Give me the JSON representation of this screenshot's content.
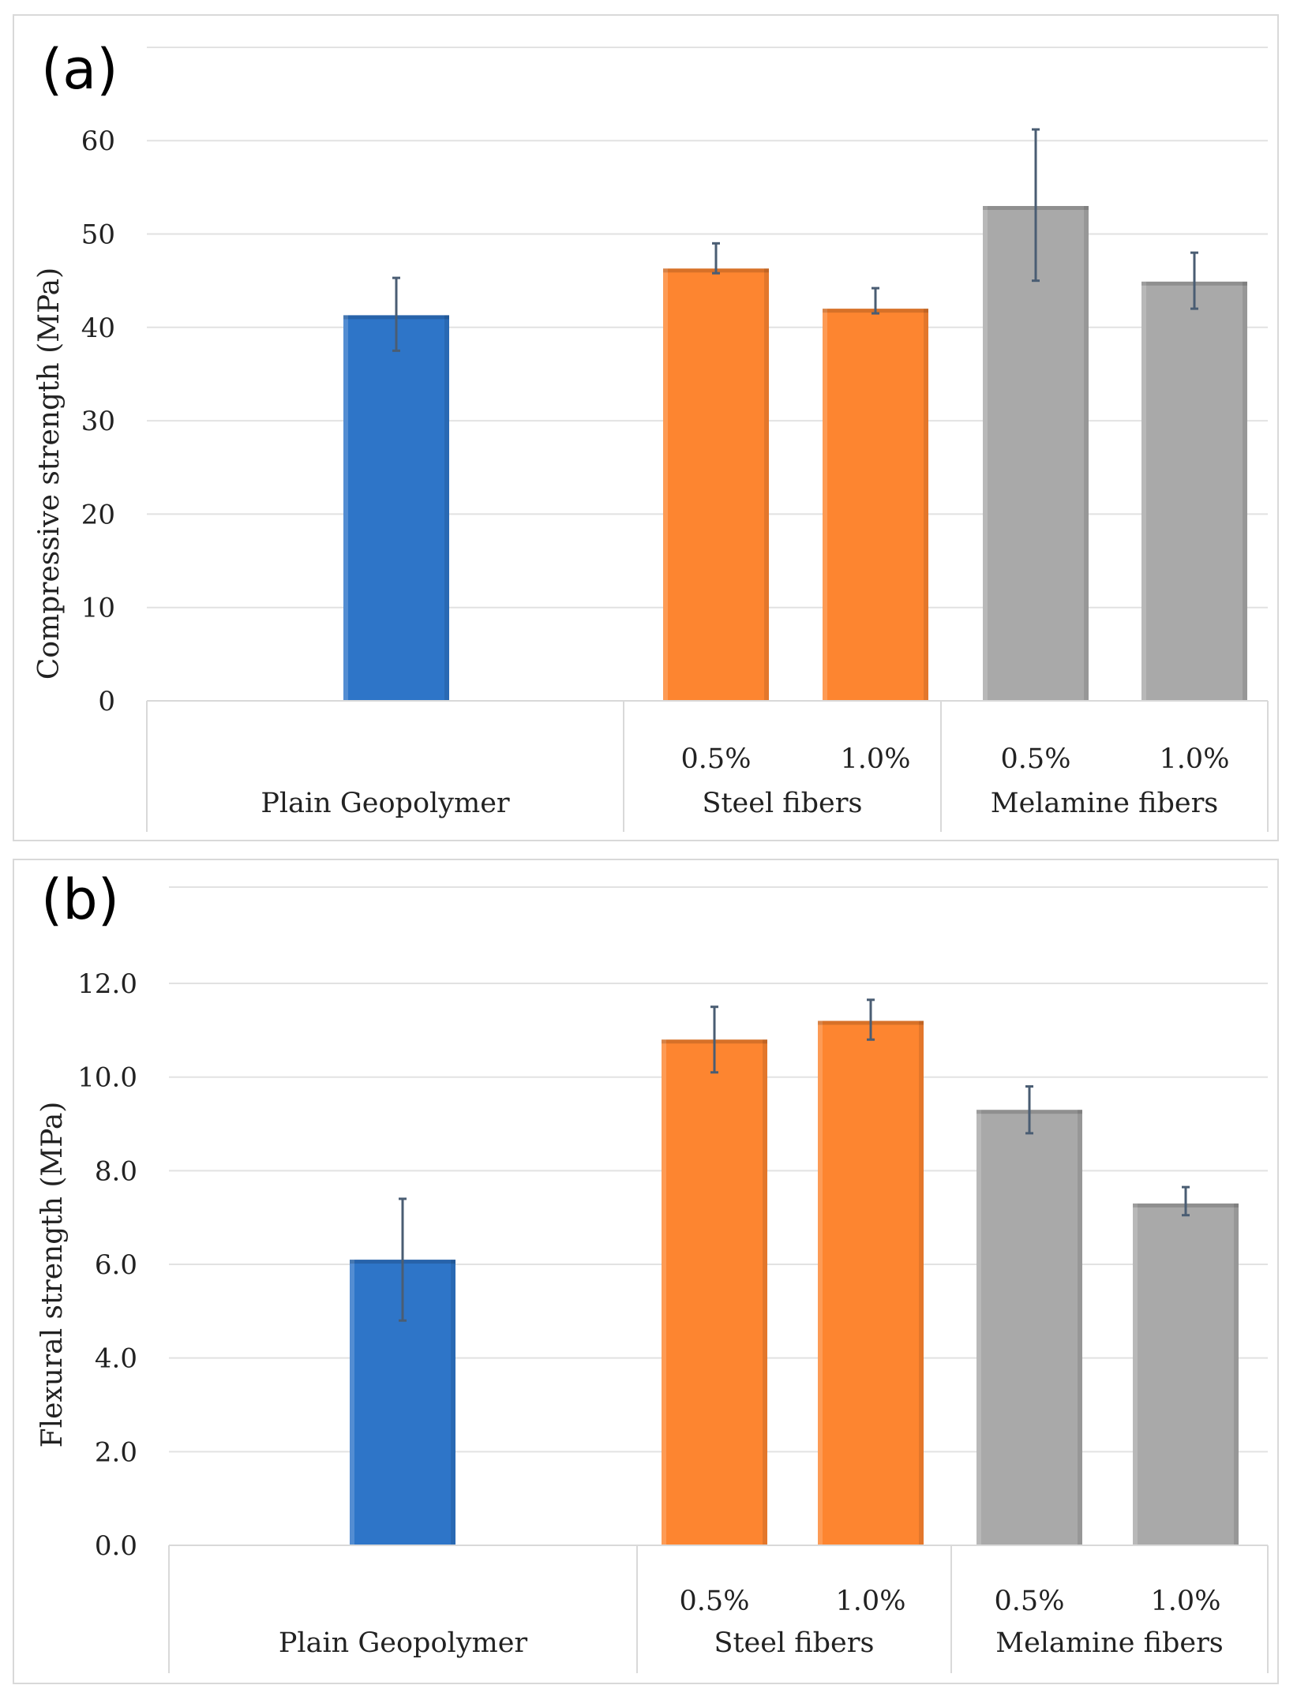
{
  "chart_data": [
    {
      "type": "bar",
      "panel_label": "(a)",
      "ylabel": "Compressive strength (MPa)",
      "ylim": [
        0,
        70
      ],
      "yticks": [
        0,
        10,
        20,
        30,
        40,
        50,
        60
      ],
      "ytick_labels": [
        "0",
        "10",
        "20",
        "30",
        "40",
        "50",
        "60"
      ],
      "groups": [
        {
          "label": "Plain Geopolymer",
          "bars": [
            {
              "label": "",
              "value": 41.3,
              "err_low": 37.5,
              "err_high": 45.3,
              "color": "#2e75c8"
            }
          ]
        },
        {
          "label": "Steel fibers",
          "bars": [
            {
              "label": "0.5%",
              "value": 46.3,
              "err_low": 45.8,
              "err_high": 49.0,
              "color": "#fd8530"
            },
            {
              "label": "1.0%",
              "value": 42.0,
              "err_low": 41.5,
              "err_high": 44.2,
              "color": "#fd8530"
            }
          ]
        },
        {
          "label": "Melamine fibers",
          "bars": [
            {
              "label": "0.5%",
              "value": 53.0,
              "err_low": 45.0,
              "err_high": 61.2,
              "color": "#a9a9a9"
            },
            {
              "label": "1.0%",
              "value": 44.9,
              "err_low": 42.0,
              "err_high": 48.0,
              "color": "#a9a9a9"
            }
          ]
        }
      ]
    },
    {
      "type": "bar",
      "panel_label": "(b)",
      "ylabel": "Flexural  strength (MPa)",
      "ylim": [
        0,
        14
      ],
      "yticks": [
        0,
        2,
        4,
        6,
        8,
        10,
        12
      ],
      "ytick_labels": [
        "0.0",
        "2.0",
        "4.0",
        "6.0",
        "8.0",
        "10.0",
        "12.0"
      ],
      "groups": [
        {
          "label": "Plain Geopolymer",
          "bars": [
            {
              "label": "",
              "value": 6.1,
              "err_low": 4.8,
              "err_high": 7.4,
              "color": "#2e75c8"
            }
          ]
        },
        {
          "label": "Steel fibers",
          "bars": [
            {
              "label": "0.5%",
              "value": 10.8,
              "err_low": 10.1,
              "err_high": 11.5,
              "color": "#fd8530"
            },
            {
              "label": "1.0%",
              "value": 11.2,
              "err_low": 10.8,
              "err_high": 11.65,
              "color": "#fd8530"
            }
          ]
        },
        {
          "label": "Melamine fibers",
          "bars": [
            {
              "label": "0.5%",
              "value": 9.3,
              "err_low": 8.8,
              "err_high": 9.8,
              "color": "#a9a9a9"
            },
            {
              "label": "1.0%",
              "value": 7.3,
              "err_low": 7.05,
              "err_high": 7.65,
              "color": "#a9a9a9"
            }
          ]
        }
      ]
    }
  ]
}
